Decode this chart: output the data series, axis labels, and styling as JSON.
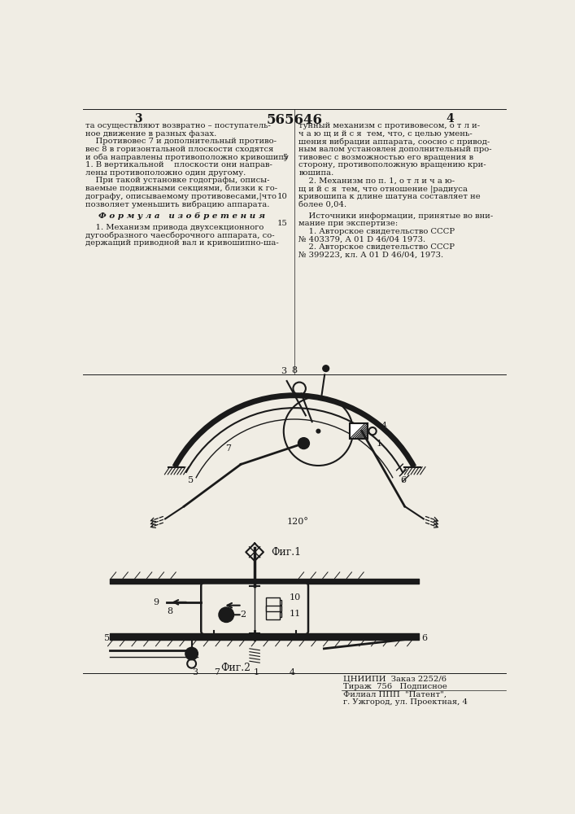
{
  "patent_number": "565646",
  "page_left": "3",
  "page_right": "4",
  "bg": "#f0ede4",
  "tc": "#1a1a1a",
  "fig1_caption": "Фиг.1",
  "fig2_caption": "Фиг.2",
  "left_col_lines": [
    "та осуществляют возвратно – поступатель-",
    "ное движение в разных фазах.",
    "    Противовес 7 и дополнительный противо-",
    "вес 8 в горизонтальной плоскости сходятся",
    "и оба направлены противоположно кривошипу",
    "1. В вертикальной    плоскости они направ-",
    "лены противоположно один другому.",
    "    При такой установке годографы, описы-",
    "ваемые подвижными секциями, близки к го-",
    "дографу, описываемому противовесами,|что",
    "позволяет уменьшить вибрацию аппарата.",
    "",
    "Ф о р м у л а   и з о б р е т е н и я",
    "",
    "    1. Механизм привода двухсекционного",
    "дугообразного чаесборочного аппарата, со-",
    "держащий приводной вал и кривошипно-ша-"
  ],
  "right_col_lines": [
    "тунный механизм с противовесом, о т л и-",
    "ч а ю щ и й с я  тем, что, с целью умень-",
    "шения вибрации аппарата, соосно с привод-",
    "ным валом установлен дополнительный про-",
    "тивовес с возможностью его вращения в",
    "сторону, противоположную вращению кри-",
    "вошипа.",
    "    2. Механизм по п. 1, о т л и ч а ю-",
    "щ и й с я  тем, что отношение |радиуса",
    "кривошипа к длине шатуна составляет не",
    "более 0,04.",
    "",
    "    Источники информации, принятые во вни-",
    "мание при экспертизе:",
    "    1. Авторское свидетельство СССР",
    "№ 403379, А 01 D 46/04 1973.",
    "    2. Авторское свидетельство СССР",
    "№ 399223, кл. А 01 D 46/04, 1973."
  ],
  "right_linenums": {
    "0": "",
    "1": "",
    "2": "",
    "3": "",
    "4": "5",
    "5": "",
    "6": "",
    "7": "",
    "8": "",
    "9": "10",
    "10": "",
    "11": "",
    "12": "",
    "13": "15",
    "14": "",
    "15": "",
    "16": ""
  },
  "publisher": [
    "ЦНИИПИ  Заказ 2252/6",
    "Тираж  756   Подписное",
    "Филиал ППП  \"Патент\",",
    "г. Ужгород, ул. Проектная, 4"
  ]
}
